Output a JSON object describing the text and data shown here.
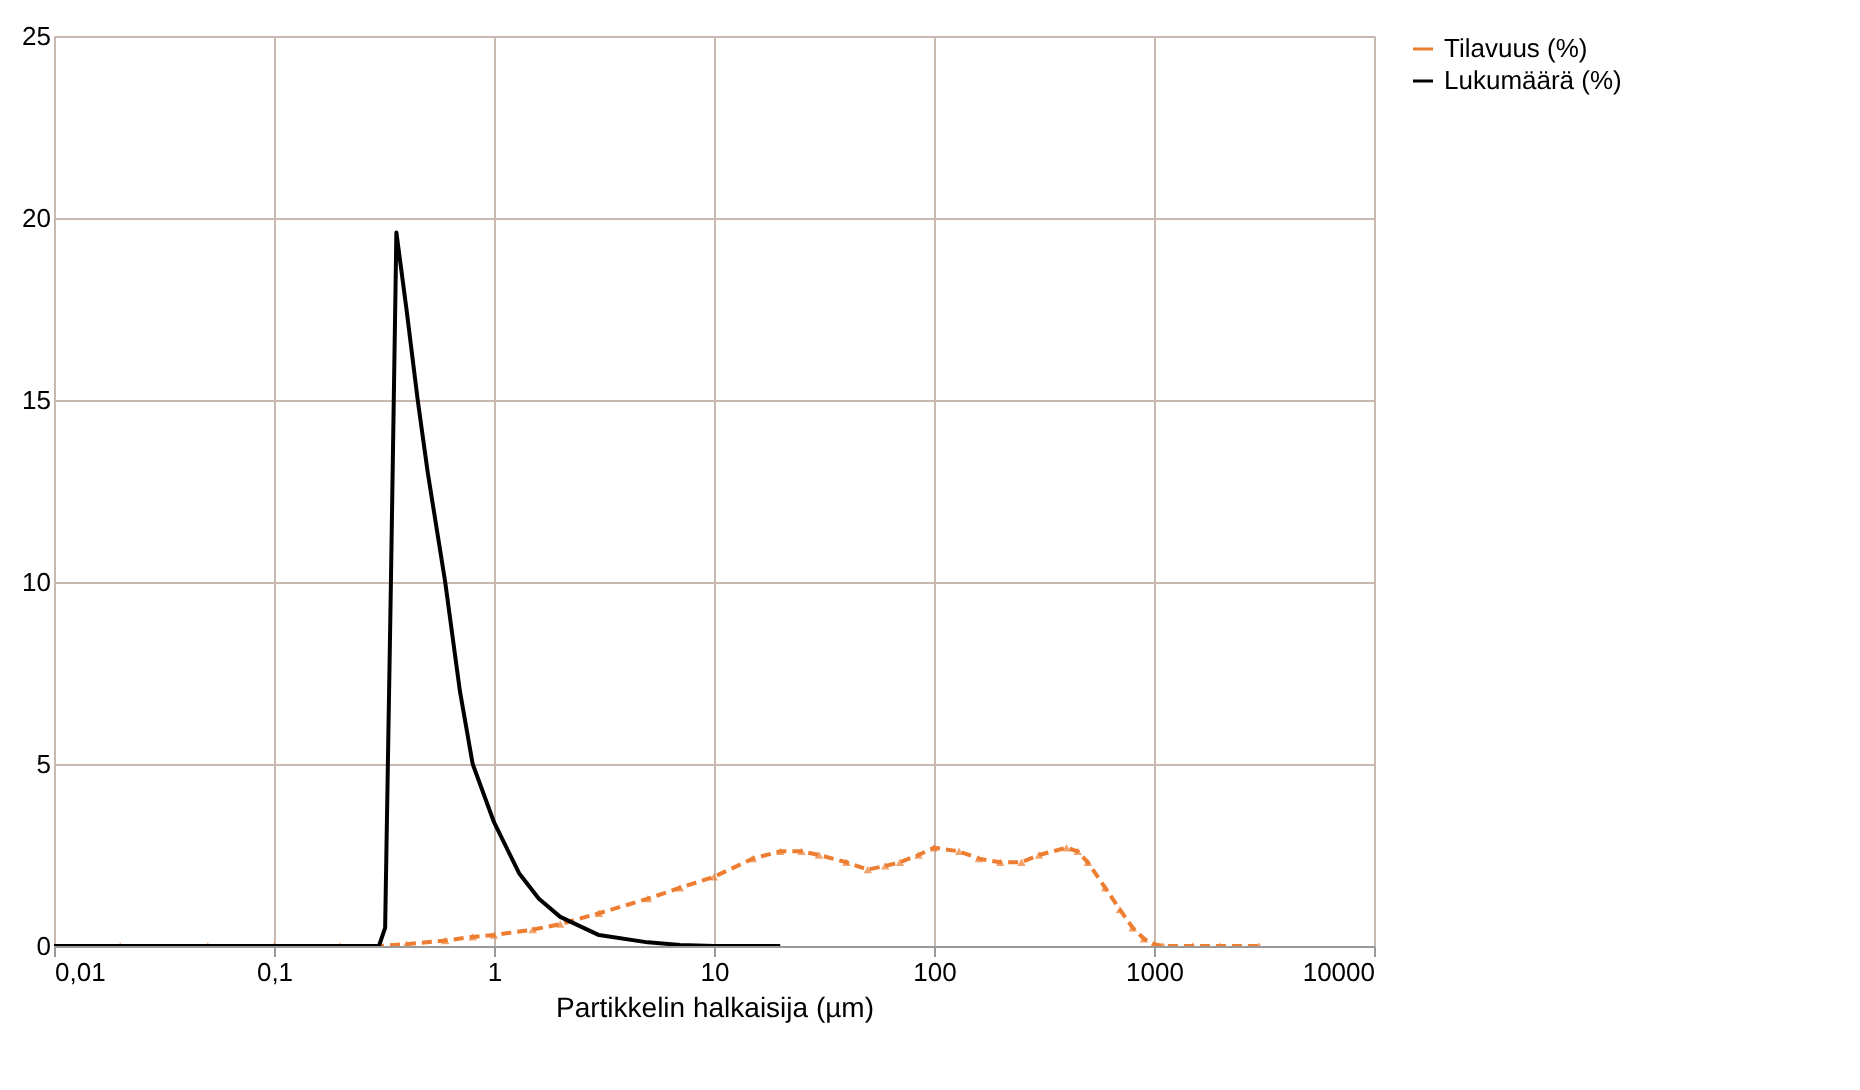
{
  "chart_data": {
    "type": "line",
    "xlabel": "Partikkelin halkaisija (µm)",
    "log": "x",
    "grid": true,
    "legend": "right",
    "xlim": [
      0.01,
      10000
    ],
    "xticks": [
      {
        "value": 0.01,
        "label": "0,01"
      },
      {
        "value": 0.1,
        "label": "0,1"
      },
      1,
      10,
      100,
      1000,
      10000
    ],
    "ylim": [
      0,
      25
    ],
    "yticks": [
      0,
      5,
      10,
      15,
      20,
      25
    ],
    "series": [
      {
        "name": "Tilavuus (%)",
        "color": "#ed7d31",
        "marker": "triangle",
        "line_style": "dashed",
        "x": [
          0.01,
          0.02,
          0.05,
          0.1,
          0.2,
          0.3,
          0.4,
          0.6,
          0.8,
          1,
          1.5,
          2,
          3,
          5,
          7,
          10,
          15,
          20,
          25,
          30,
          40,
          50,
          60,
          70,
          85,
          100,
          130,
          160,
          200,
          250,
          300,
          400,
          450,
          500,
          600,
          700,
          800,
          900,
          1000,
          1100,
          1500,
          2000,
          3000
        ],
        "values": [
          0,
          0,
          0,
          0,
          0,
          0,
          0.05,
          0.15,
          0.25,
          0.3,
          0.45,
          0.6,
          0.9,
          1.3,
          1.6,
          1.9,
          2.4,
          2.6,
          2.6,
          2.5,
          2.3,
          2.1,
          2.2,
          2.3,
          2.5,
          2.7,
          2.6,
          2.4,
          2.3,
          2.3,
          2.5,
          2.7,
          2.6,
          2.3,
          1.6,
          1.0,
          0.5,
          0.2,
          0.05,
          0,
          0,
          0,
          0
        ]
      },
      {
        "name": "Lukumäärä (%)",
        "color": "#000000",
        "marker": "none",
        "line_style": "solid",
        "x": [
          0.01,
          0.1,
          0.3,
          0.32,
          0.34,
          0.36,
          0.4,
          0.45,
          0.5,
          0.6,
          0.7,
          0.8,
          1,
          1.3,
          1.6,
          2,
          3,
          5,
          7,
          10,
          20
        ],
        "values": [
          0,
          0,
          0,
          0.5,
          10,
          19.6,
          17.5,
          15,
          13,
          10,
          7,
          5,
          3.4,
          2,
          1.3,
          0.8,
          0.3,
          0.1,
          0.03,
          0,
          0
        ]
      }
    ]
  }
}
